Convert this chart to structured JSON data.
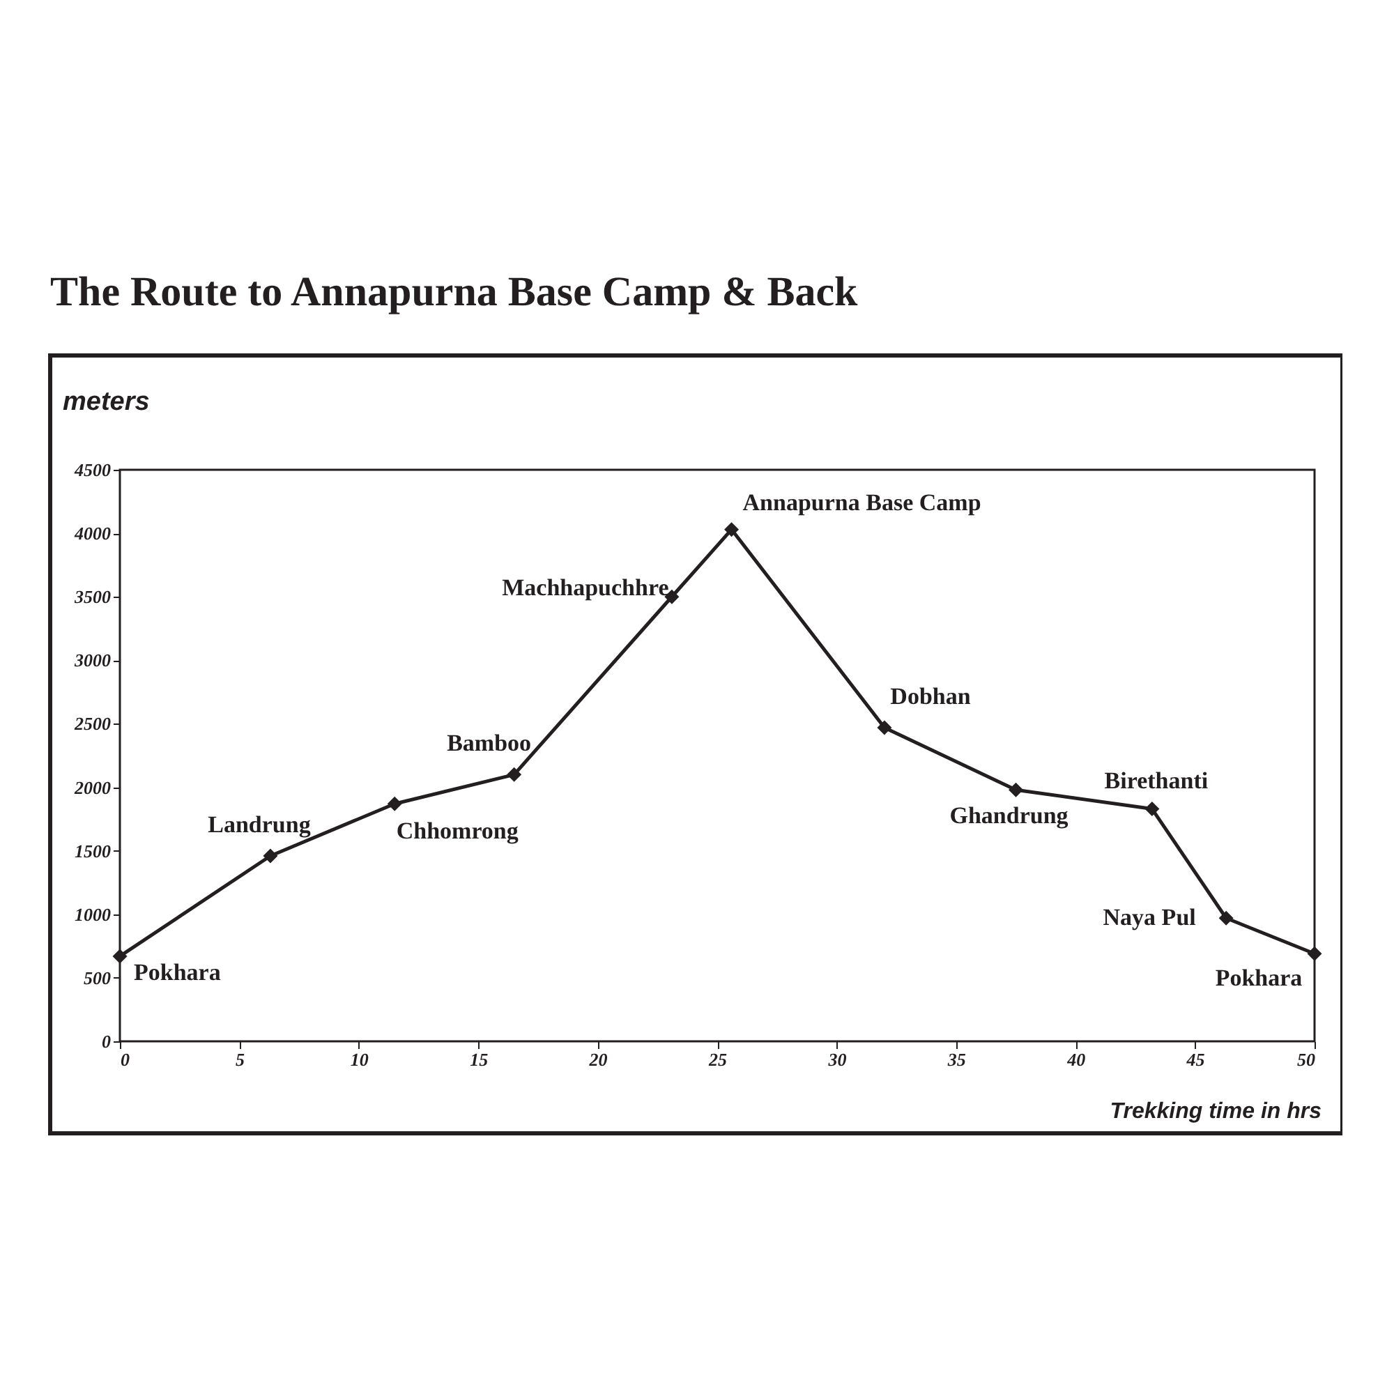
{
  "chart_data": {
    "type": "line",
    "title": "The Route to Annapurna Base Camp & Back",
    "xlabel": "Trekking time in hrs",
    "ylabel": "meters",
    "x": [
      0,
      6.3,
      11.5,
      16.5,
      23.1,
      25.6,
      32.0,
      37.5,
      43.2,
      46.3,
      50
    ],
    "series": [
      {
        "color": "#231f20",
        "values": [
          670,
          1460,
          1870,
          2100,
          3500,
          4030,
          2470,
          1980,
          1830,
          970,
          690
        ]
      }
    ],
    "annotations": [
      {
        "text": "Pokhara",
        "x": 0,
        "y": 670
      },
      {
        "text": "Landrung",
        "x": 6.3,
        "y": 1460
      },
      {
        "text": "Chhomrong",
        "x": 11.5,
        "y": 1870
      },
      {
        "text": "Bamboo",
        "x": 16.5,
        "y": 2100
      },
      {
        "text": "Machhapuchhre",
        "x": 23.1,
        "y": 3500
      },
      {
        "text": "Annapurna Base Camp",
        "x": 25.6,
        "y": 4030
      },
      {
        "text": "Dobhan",
        "x": 32.0,
        "y": 2470
      },
      {
        "text": "Ghandrung",
        "x": 37.5,
        "y": 1980
      },
      {
        "text": "Birethanti",
        "x": 43.2,
        "y": 1830
      },
      {
        "text": "Naya Pul",
        "x": 46.3,
        "y": 970
      },
      {
        "text": "Pokhara",
        "x": 50,
        "y": 690
      }
    ],
    "xlim": [
      0,
      50
    ],
    "xticks": [
      0,
      5,
      10,
      15,
      20,
      25,
      30,
      35,
      40,
      45,
      50
    ],
    "ylim": [
      0,
      4500
    ],
    "yticks": [
      0,
      500,
      1000,
      1500,
      2000,
      2500,
      3000,
      3500,
      4000,
      4500
    ],
    "marker": "diamond",
    "line_style": "solid",
    "grid": false
  }
}
